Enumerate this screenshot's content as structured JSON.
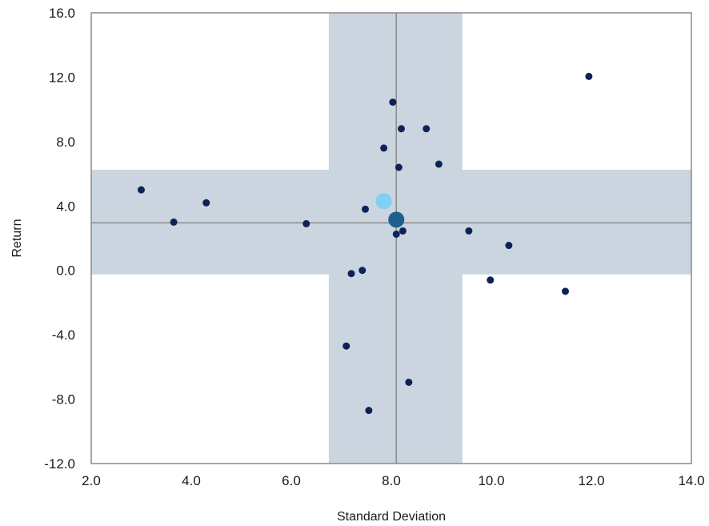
{
  "chart_data": {
    "type": "scatter",
    "xlabel": "Standard Deviation",
    "ylabel": "Return",
    "xlim": [
      2.0,
      14.0
    ],
    "ylim": [
      -12.0,
      16.0
    ],
    "x_ticks": [
      "2.0",
      "4.0",
      "6.0",
      "8.0",
      "10.0",
      "12.0",
      "14.0"
    ],
    "y_ticks": [
      "16.0",
      "12.0",
      "8.0",
      "4.0",
      "0.0",
      "-4.0",
      "-8.0",
      "-12.0"
    ],
    "grid": false,
    "reference_lines": {
      "x": 8.1,
      "y": 2.95
    },
    "shaded_bands": {
      "x_range": [
        6.75,
        9.42
      ],
      "y_range": [
        -0.25,
        6.25
      ],
      "color": "#cbd5df"
    },
    "colors": {
      "point": "#0d2259",
      "highlight_light": "#7fd0f2",
      "highlight_dark": "#1f5f8b",
      "reference_line": "#8a8a8a",
      "frame": "#8a8a8a"
    },
    "points": [
      {
        "x": 3.0,
        "y": 5.0
      },
      {
        "x": 3.65,
        "y": 3.0
      },
      {
        "x": 4.3,
        "y": 4.2
      },
      {
        "x": 6.3,
        "y": 2.9
      },
      {
        "x": 7.1,
        "y": -4.7
      },
      {
        "x": 7.2,
        "y": -0.2
      },
      {
        "x": 7.42,
        "y": 0.0
      },
      {
        "x": 7.48,
        "y": 3.8
      },
      {
        "x": 7.55,
        "y": -8.7
      },
      {
        "x": 7.85,
        "y": 7.6
      },
      {
        "x": 8.03,
        "y": 10.45
      },
      {
        "x": 8.1,
        "y": 2.25
      },
      {
        "x": 8.15,
        "y": 6.4
      },
      {
        "x": 8.2,
        "y": 8.8
      },
      {
        "x": 8.23,
        "y": 2.45
      },
      {
        "x": 8.35,
        "y": -6.95
      },
      {
        "x": 8.7,
        "y": 8.8
      },
      {
        "x": 8.95,
        "y": 6.6
      },
      {
        "x": 9.55,
        "y": 2.45
      },
      {
        "x": 9.98,
        "y": -0.6
      },
      {
        "x": 10.35,
        "y": 1.55
      },
      {
        "x": 11.48,
        "y": -1.3
      },
      {
        "x": 11.95,
        "y": 12.05
      }
    ],
    "highlight_points": [
      {
        "x": 7.85,
        "y": 4.3,
        "color_key": "highlight_light"
      },
      {
        "x": 8.1,
        "y": 3.15,
        "color_key": "highlight_dark"
      }
    ]
  }
}
